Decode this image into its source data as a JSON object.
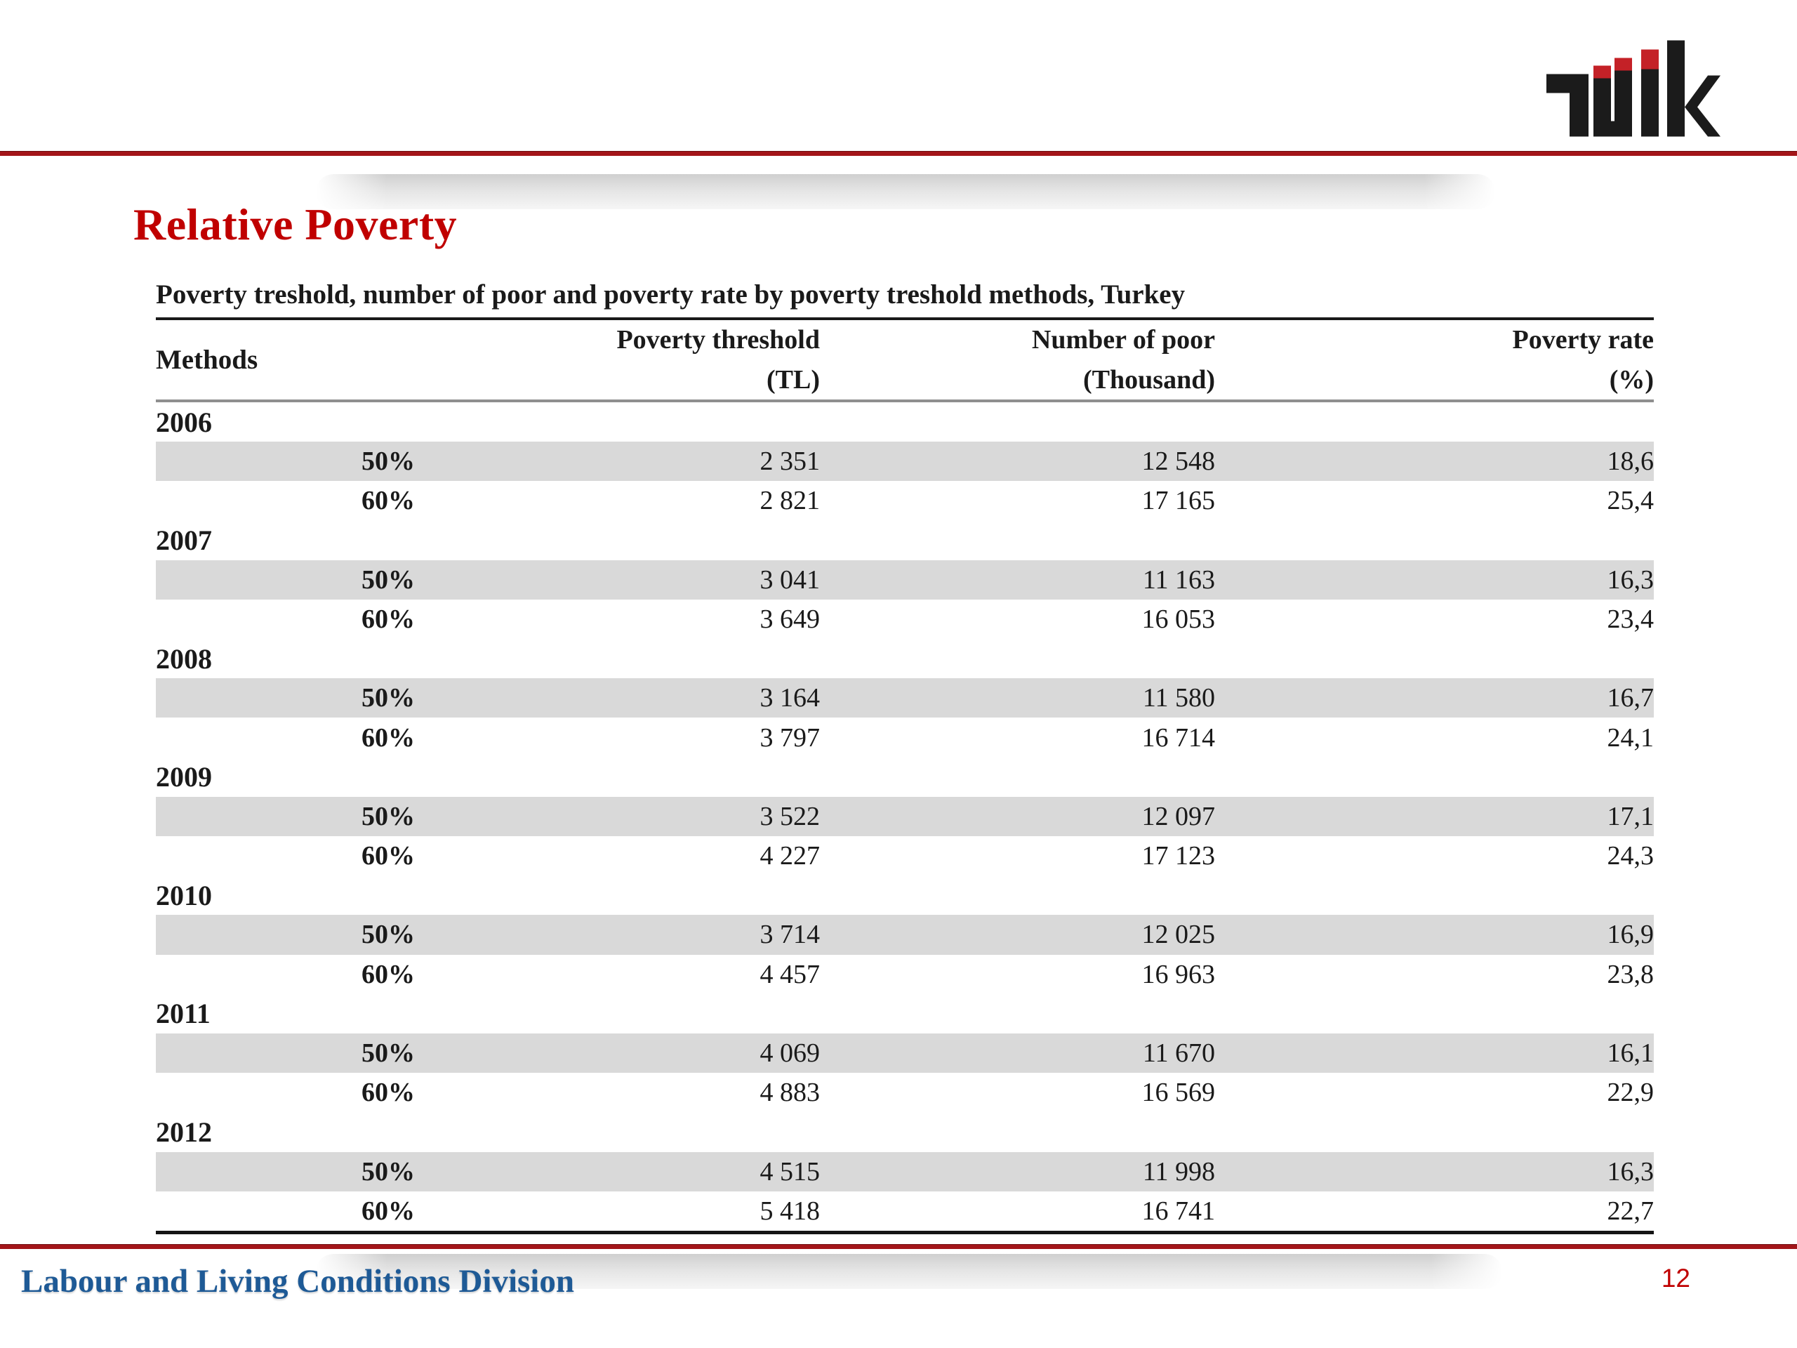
{
  "slide": {
    "title": "Relative Poverty",
    "footer": "Labour and Living Conditions Division",
    "page_number": "12"
  },
  "logo": {
    "name": "TUIK statistical institute logo",
    "black": "#1b1b1b",
    "red": "#c42127"
  },
  "colors": {
    "title_red": "#c00000",
    "divider_red": "#a31519",
    "footer_blue": "#1e5a96",
    "row_shade_gray": "#d9d9d9",
    "header_rule_gray": "#8f8f8f",
    "page_number_red": "#c00000"
  },
  "table": {
    "caption": "Poverty treshold, number of poor and poverty rate by poverty treshold methods, Turkey",
    "headers": {
      "methods": "Methods",
      "threshold_line1": "Poverty threshold",
      "threshold_line2": "(TL)",
      "poor_line1": "Number of poor",
      "poor_line2": "(Thousand)",
      "rate_line1": "Poverty rate",
      "rate_line2": "(%)"
    },
    "groups": [
      {
        "year": "2006",
        "rows": [
          {
            "method": "50%",
            "threshold": "2 351",
            "poor": "12 548",
            "rate": "18,6",
            "shaded": true
          },
          {
            "method": "60%",
            "threshold": "2 821",
            "poor": "17 165",
            "rate": "25,4",
            "shaded": false
          }
        ]
      },
      {
        "year": "2007",
        "rows": [
          {
            "method": "50%",
            "threshold": "3 041",
            "poor": "11 163",
            "rate": "16,3",
            "shaded": true
          },
          {
            "method": "60%",
            "threshold": "3 649",
            "poor": "16 053",
            "rate": "23,4",
            "shaded": false
          }
        ]
      },
      {
        "year": "2008",
        "rows": [
          {
            "method": "50%",
            "threshold": "3 164",
            "poor": "11 580",
            "rate": "16,7",
            "shaded": true
          },
          {
            "method": "60%",
            "threshold": "3 797",
            "poor": "16 714",
            "rate": "24,1",
            "shaded": false
          }
        ]
      },
      {
        "year": "2009",
        "rows": [
          {
            "method": "50%",
            "threshold": "3 522",
            "poor": "12 097",
            "rate": "17,1",
            "shaded": true
          },
          {
            "method": "60%",
            "threshold": "4 227",
            "poor": "17 123",
            "rate": "24,3",
            "shaded": false
          }
        ]
      },
      {
        "year": "2010",
        "rows": [
          {
            "method": "50%",
            "threshold": "3 714",
            "poor": "12 025",
            "rate": "16,9",
            "shaded": true
          },
          {
            "method": "60%",
            "threshold": "4 457",
            "poor": "16 963",
            "rate": "23,8",
            "shaded": false
          }
        ]
      },
      {
        "year": "2011",
        "rows": [
          {
            "method": "50%",
            "threshold": "4 069",
            "poor": "11 670",
            "rate": "16,1",
            "shaded": true
          },
          {
            "method": "60%",
            "threshold": "4 883",
            "poor": "16 569",
            "rate": "22,9",
            "shaded": false
          }
        ]
      },
      {
        "year": "2012",
        "rows": [
          {
            "method": "50%",
            "threshold": "4 515",
            "poor": "11 998",
            "rate": "16,3",
            "shaded": true
          },
          {
            "method": "60%",
            "threshold": "5 418",
            "poor": "16 741",
            "rate": "22,7",
            "shaded": false
          }
        ]
      }
    ]
  },
  "chart_data": {
    "type": "table",
    "title": "Poverty treshold, number of poor and poverty rate by poverty treshold methods, Turkey",
    "columns": [
      "Methods",
      "Poverty threshold (TL)",
      "Number of poor (Thousand)",
      "Poverty rate (%)"
    ],
    "rows": [
      [
        "2006 50%",
        2351,
        12548,
        18.6
      ],
      [
        "2006 60%",
        2821,
        17165,
        25.4
      ],
      [
        "2007 50%",
        3041,
        11163,
        16.3
      ],
      [
        "2007 60%",
        3649,
        16053,
        23.4
      ],
      [
        "2008 50%",
        3164,
        11580,
        16.7
      ],
      [
        "2008 60%",
        3797,
        16714,
        24.1
      ],
      [
        "2009 50%",
        3522,
        12097,
        17.1
      ],
      [
        "2009 60%",
        4227,
        17123,
        24.3
      ],
      [
        "2010 50%",
        3714,
        12025,
        16.9
      ],
      [
        "2010 60%",
        4457,
        16963,
        23.8
      ],
      [
        "2011 50%",
        4069,
        11670,
        16.1
      ],
      [
        "2011 60%",
        4883,
        16569,
        22.9
      ],
      [
        "2012 50%",
        4515,
        11998,
        16.3
      ],
      [
        "2012 60%",
        5418,
        16741,
        22.7
      ]
    ]
  }
}
